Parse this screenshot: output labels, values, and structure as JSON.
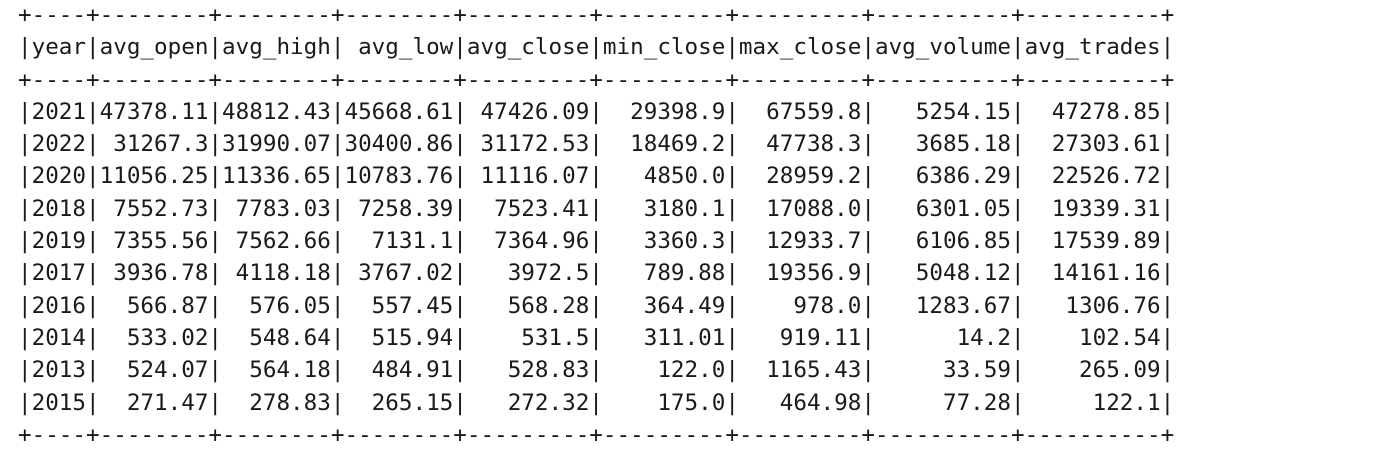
{
  "table": {
    "border": "+----+--------+--------+--------+---------+---------+---------+----------+----------+",
    "header": "|year|avg_open|avg_high| avg_low|avg_close|min_close|max_close|avg_volume|avg_trades|",
    "rows": [
      "|2021|47378.11|48812.43|45668.61| 47426.09|  29398.9|  67559.8|   5254.15|  47278.85|",
      "|2022| 31267.3|31990.07|30400.86| 31172.53|  18469.2|  47738.3|   3685.18|  27303.61|",
      "|2020|11056.25|11336.65|10783.76| 11116.07|   4850.0|  28959.2|   6386.29|  22526.72|",
      "|2018| 7552.73| 7783.03| 7258.39|  7523.41|   3180.1|  17088.0|   6301.05|  19339.31|",
      "|2019| 7355.56| 7562.66|  7131.1|  7364.96|   3360.3|  12933.7|   6106.85|  17539.89|",
      "|2017| 3936.78| 4118.18| 3767.02|   3972.5|   789.88|  19356.9|   5048.12|  14161.16|",
      "|2016|  566.87|  576.05|  557.45|   568.28|   364.49|    978.0|   1283.67|   1306.76|",
      "|2014|  533.02|  548.64|  515.94|    531.5|   311.01|   919.11|      14.2|    102.54|",
      "|2013|  524.07|  564.18|  484.91|   528.83|    122.0|  1165.43|     33.59|    265.09|",
      "|2015|  271.47|  278.83|  265.15|   272.32|    175.0|   464.98|     77.28|     122.1|"
    ]
  }
}
